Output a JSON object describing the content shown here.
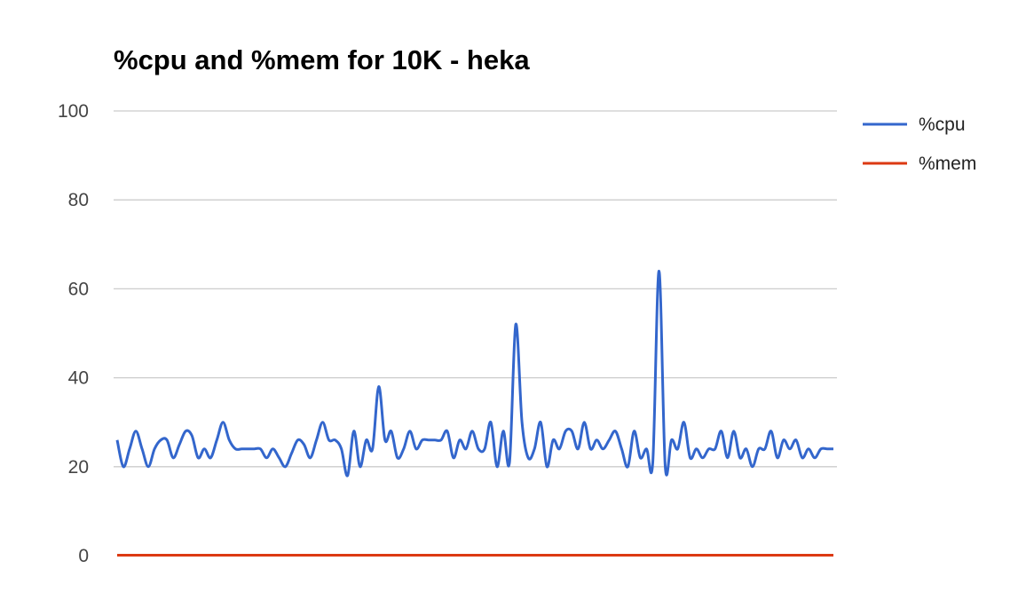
{
  "chart_data": {
    "type": "line",
    "title": "%cpu and %mem for 10K - heka",
    "xlabel": "",
    "ylabel": "",
    "ylim": [
      0,
      100
    ],
    "yticks": [
      "0",
      "20",
      "40",
      "60",
      "80",
      "100"
    ],
    "grid": true,
    "legend_position": "right",
    "series": [
      {
        "name": "%cpu",
        "color": "#3366cc",
        "values": [
          26,
          20,
          24,
          28,
          24,
          20,
          24,
          26,
          26,
          22,
          25,
          28,
          27,
          22,
          24,
          22,
          26,
          30,
          26,
          24,
          24,
          24,
          24,
          24,
          22,
          24,
          22,
          20,
          23,
          26,
          25,
          22,
          26,
          30,
          26,
          26,
          24,
          18,
          28,
          20,
          26,
          24,
          38,
          26,
          28,
          22,
          24,
          28,
          24,
          26,
          26,
          26,
          26,
          28,
          22,
          26,
          24,
          28,
          24,
          24,
          30,
          20,
          28,
          21,
          52,
          30,
          22,
          24,
          30,
          20,
          26,
          24,
          28,
          28,
          24,
          30,
          24,
          26,
          24,
          26,
          28,
          24,
          20,
          28,
          22,
          24,
          21,
          64,
          20,
          26,
          24,
          30,
          22,
          24,
          22,
          24,
          24,
          28,
          22,
          28,
          22,
          24,
          20,
          24,
          24,
          28,
          22,
          26,
          24,
          26,
          22,
          24,
          22,
          24,
          24,
          24
        ]
      },
      {
        "name": "%mem",
        "color": "#dc3912",
        "values": [
          0.1,
          0.1,
          0.1,
          0.1,
          0.1,
          0.1,
          0.1,
          0.1,
          0.1,
          0.1,
          0.1,
          0.1,
          0.1,
          0.1,
          0.1,
          0.1,
          0.1,
          0.1,
          0.1,
          0.1,
          0.1,
          0.1,
          0.1,
          0.1,
          0.1,
          0.1,
          0.1,
          0.1,
          0.1,
          0.1,
          0.1,
          0.1,
          0.1,
          0.1,
          0.1,
          0.1,
          0.1,
          0.1,
          0.1,
          0.1,
          0.1,
          0.1,
          0.1,
          0.1,
          0.1,
          0.1,
          0.1,
          0.1,
          0.1,
          0.1,
          0.1,
          0.1,
          0.1,
          0.1,
          0.1,
          0.1,
          0.1,
          0.1,
          0.1,
          0.1,
          0.1,
          0.1,
          0.1,
          0.1,
          0.1,
          0.1,
          0.1,
          0.1,
          0.1,
          0.1,
          0.1,
          0.1,
          0.1,
          0.1,
          0.1,
          0.1,
          0.1,
          0.1,
          0.1,
          0.1,
          0.1,
          0.1,
          0.1,
          0.1,
          0.1,
          0.1,
          0.1,
          0.1,
          0.1,
          0.1,
          0.1,
          0.1,
          0.1,
          0.1,
          0.1,
          0.1,
          0.1,
          0.1,
          0.1,
          0.1,
          0.1,
          0.1,
          0.1,
          0.1,
          0.1,
          0.1,
          0.1,
          0.1,
          0.1,
          0.1,
          0.1,
          0.1,
          0.1,
          0.1,
          0.1,
          0.1
        ]
      }
    ]
  }
}
